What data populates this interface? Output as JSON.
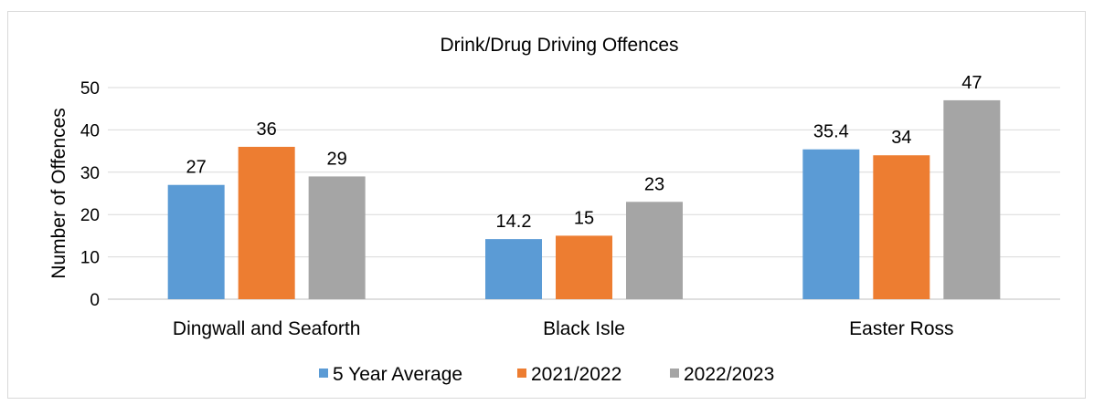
{
  "chart_data": {
    "type": "bar",
    "title": "Drink/Drug Driving Offences",
    "xlabel": "",
    "ylabel": "Number of Offences",
    "ylim": [
      0,
      50
    ],
    "yticks": [
      0,
      10,
      20,
      30,
      40,
      50
    ],
    "grid": true,
    "legend_position": "bottom",
    "categories": [
      "Dingwall and Seaforth",
      "Black Isle",
      "Easter Ross"
    ],
    "series": [
      {
        "name": "5 Year Average",
        "values": [
          27,
          14.2,
          35.4
        ],
        "color": "#5B9BD5"
      },
      {
        "name": "2021/2022",
        "values": [
          36,
          15,
          34
        ],
        "color": "#ED7D31"
      },
      {
        "name": "2022/2023",
        "values": [
          29,
          23,
          47
        ],
        "color": "#A5A5A5"
      }
    ]
  }
}
